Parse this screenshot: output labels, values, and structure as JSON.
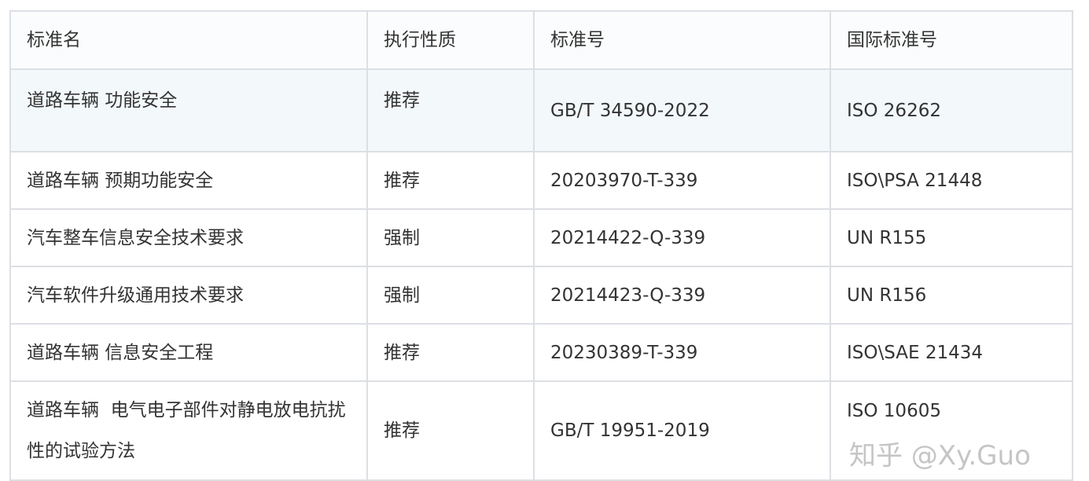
{
  "table": {
    "headers": [
      "标准名",
      "执行性质",
      "标准号",
      "国际标准号"
    ],
    "rows": [
      [
        "道路车辆 功能安全",
        "推荐",
        "GB/T 34590-2022",
        "ISO 26262"
      ],
      [
        "道路车辆 预期功能安全",
        "推荐",
        "20203970-T-339",
        "ISO\\PSA 21448"
      ],
      [
        "汽车整车信息安全技术要求",
        "强制",
        "20214422-Q-339",
        "UN R155"
      ],
      [
        "汽车软件升级通用技术要求",
        "强制",
        "20214423-Q-339",
        "UN R156"
      ],
      [
        "道路车辆 信息安全工程",
        "推荐",
        "20230389-T-339",
        "ISO\\SAE 21434"
      ],
      [
        "道路车辆  电气电子部件对静电放电抗扰性的试验方法",
        "推荐",
        "GB/T 19951-2019",
        "ISO 10605"
      ]
    ]
  },
  "watermark": "知乎 @Xy.Guo",
  "colors": {
    "border": "#dcdfe3",
    "highlight_row": "#f3f8fb",
    "text": "#333333"
  }
}
